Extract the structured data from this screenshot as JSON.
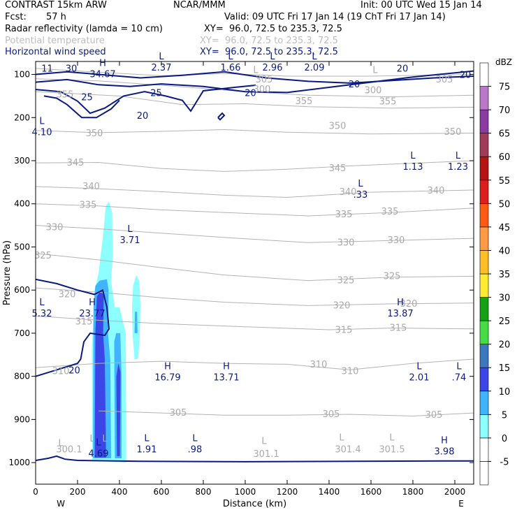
{
  "header": {
    "model": "CONTRAST 15km ARW",
    "org": "NCAR/MMM",
    "init": "Init: 00 UTC Wed 15 Jan 14",
    "fcst_label": "Fcst:",
    "fcst_value": "57 h",
    "valid": "Valid: 09 UTC Fri 17 Jan 14 (19 ChT Fri 17 Jan 14)",
    "fields": [
      {
        "name": "Radar reflectivity (lamda = 10 cm)",
        "xy": "XY=  96.0, 72.5 to 235.3, 72.5",
        "color": "#000000"
      },
      {
        "name": "Potential temperature",
        "xy": "XY=  96.0, 72.5 to 235.3, 72.5",
        "color": "#bdbdbd"
      },
      {
        "name": "Horizontal wind speed",
        "xy": "XY=  96.0, 72.5 to 235.3, 72.5",
        "color": "#0b1a80"
      }
    ]
  },
  "chart_data": {
    "type": "cross-section",
    "xlabel": "Distance (km)",
    "ylabel": "Pressure (hPa)",
    "xlim": [
      0,
      2090
    ],
    "ylim": [
      1050,
      70
    ],
    "x_ticks": [
      0,
      200,
      400,
      600,
      800,
      1000,
      1200,
      1400,
      1600,
      1800,
      2000
    ],
    "y_ticks": [
      100,
      200,
      300,
      400,
      500,
      600,
      700,
      800,
      900,
      1000
    ],
    "x_end_labels": {
      "left": "W",
      "right": "E"
    },
    "colorbar": {
      "unit": "dBZ",
      "levels": [
        -5,
        0,
        5,
        10,
        15,
        20,
        25,
        30,
        35,
        40,
        45,
        50,
        55,
        60,
        65,
        70,
        75
      ],
      "colors": [
        "#ffffff",
        "#ffffff",
        "#8effff",
        "#40b4ff",
        "#3c46e6",
        "#3c78be",
        "#46dc46",
        "#16a016",
        "#ffeb32",
        "#ffbe28",
        "#ff9b46",
        "#ff5a14",
        "#dc1e1e",
        "#b41414",
        "#a03c5a",
        "#8c3ca0",
        "#b978c8",
        "#ffffff"
      ]
    },
    "theta_labels": [
      {
        "v": "305",
        "x": 1090,
        "p": 112
      },
      {
        "v": "305",
        "x": 1950,
        "p": 112
      },
      {
        "v": "300",
        "x": 1080,
        "p": 135
      },
      {
        "v": "300",
        "x": 1610,
        "p": 137
      },
      {
        "v": "355",
        "x": 140,
        "p": 147
      },
      {
        "v": "355",
        "x": 1280,
        "p": 162
      },
      {
        "v": "355",
        "x": 1680,
        "p": 163
      },
      {
        "v": "350",
        "x": 280,
        "p": 237
      },
      {
        "v": "350",
        "x": 1440,
        "p": 220
      },
      {
        "v": "350",
        "x": 1990,
        "p": 234
      },
      {
        "v": "345",
        "x": 190,
        "p": 305
      },
      {
        "v": "345",
        "x": 1440,
        "p": 318
      },
      {
        "v": "340",
        "x": 265,
        "p": 360
      },
      {
        "v": "340",
        "x": 1490,
        "p": 373
      },
      {
        "v": "340",
        "x": 1910,
        "p": 370
      },
      {
        "v": "335",
        "x": 250,
        "p": 403
      },
      {
        "v": "335",
        "x": 1470,
        "p": 425
      },
      {
        "v": "335",
        "x": 1690,
        "p": 418
      },
      {
        "v": "330",
        "x": 90,
        "p": 455
      },
      {
        "v": "330",
        "x": 1480,
        "p": 490
      },
      {
        "v": "330",
        "x": 1720,
        "p": 485
      },
      {
        "v": "325",
        "x": 35,
        "p": 520
      },
      {
        "v": "325",
        "x": 1480,
        "p": 578
      },
      {
        "v": "325",
        "x": 1700,
        "p": 568
      },
      {
        "v": "320",
        "x": 150,
        "p": 610
      },
      {
        "v": "320",
        "x": 1460,
        "p": 636
      },
      {
        "v": "320",
        "x": 1780,
        "p": 632
      },
      {
        "v": "315",
        "x": 230,
        "p": 673
      },
      {
        "v": "315",
        "x": 1470,
        "p": 693
      },
      {
        "v": "315",
        "x": 1730,
        "p": 688
      },
      {
        "v": "310",
        "x": 120,
        "p": 788
      },
      {
        "v": "310",
        "x": 1350,
        "p": 773
      },
      {
        "v": "310",
        "x": 1500,
        "p": 788
      },
      {
        "v": "305",
        "x": 680,
        "p": 885
      },
      {
        "v": "305",
        "x": 1410,
        "p": 888
      },
      {
        "v": "305",
        "x": 1900,
        "p": 890
      },
      {
        "v": "300.1",
        "x": 160,
        "p": 970
      },
      {
        "v": "301.1",
        "x": 1100,
        "p": 980
      },
      {
        "v": "301.4",
        "x": 1490,
        "p": 970
      },
      {
        "v": "301.5",
        "x": 1700,
        "p": 970
      }
    ],
    "theta_marks": [
      {
        "t": "L",
        "x": 270,
        "p": 945
      },
      {
        "t": "L",
        "x": 330,
        "p": 945
      },
      {
        "t": "L",
        "x": 1090,
        "p": 950
      },
      {
        "t": "L",
        "x": 1460,
        "p": 942
      },
      {
        "t": "L",
        "x": 1700,
        "p": 942
      },
      {
        "t": "L",
        "x": 120,
        "p": 955
      },
      {
        "t": "L",
        "x": 1050,
        "p": 90
      },
      {
        "t": "L",
        "x": 1620,
        "p": 90
      }
    ],
    "wind_labels": [
      {
        "v": "11",
        "x": 55,
        "p": 85
      },
      {
        "v": "30",
        "x": 170,
        "p": 85
      },
      {
        "v": "25",
        "x": 245,
        "p": 152
      },
      {
        "v": "25",
        "x": 575,
        "p": 142
      },
      {
        "v": "20",
        "x": 510,
        "p": 195
      },
      {
        "v": "20",
        "x": 1025,
        "p": 142
      },
      {
        "v": "20",
        "x": 1520,
        "p": 122
      },
      {
        "v": "20",
        "x": 1750,
        "p": 85
      },
      {
        "v": "20",
        "x": 2050,
        "p": 100
      },
      {
        "v": "20",
        "x": 185,
        "p": 785
      }
    ],
    "wind_extrema": [
      {
        "t": "H",
        "v": "34.67",
        "x": 320,
        "p": 85
      },
      {
        "t": "L",
        "v": "2.37",
        "x": 600,
        "p": 70
      },
      {
        "t": "L",
        "v": "1.66",
        "x": 930,
        "p": 70
      },
      {
        "t": "L",
        "v": "2.96",
        "x": 1130,
        "p": 70
      },
      {
        "t": "L",
        "v": "2.09",
        "x": 1330,
        "p": 70
      },
      {
        "t": "L",
        "v": "4.10",
        "x": 30,
        "p": 220
      },
      {
        "t": "L",
        "v": "1.13",
        "x": 1800,
        "p": 300
      },
      {
        "t": "L",
        "v": "1.23",
        "x": 2015,
        "p": 300
      },
      {
        "t": "L",
        "v": ".33",
        "x": 1550,
        "p": 365
      },
      {
        "t": "L",
        "v": "3.71",
        "x": 450,
        "p": 470
      },
      {
        "t": "L",
        "v": "5.32",
        "x": 30,
        "p": 640
      },
      {
        "t": "H",
        "v": "23.77",
        "x": 270,
        "p": 640
      },
      {
        "t": "H",
        "v": "13.87",
        "x": 1740,
        "p": 640
      },
      {
        "t": "H",
        "v": "16.79",
        "x": 630,
        "p": 788
      },
      {
        "t": "H",
        "v": "13.71",
        "x": 910,
        "p": 788
      },
      {
        "t": "L",
        "v": "2.01",
        "x": 1830,
        "p": 788
      },
      {
        "t": "L",
        "v": ".74",
        "x": 2020,
        "p": 788
      },
      {
        "t": "L",
        "v": "4.69",
        "x": 300,
        "p": 965
      },
      {
        "t": "L",
        "v": "1.91",
        "x": 530,
        "p": 955
      },
      {
        "t": "L",
        "v": ".98",
        "x": 760,
        "p": 955
      },
      {
        "t": "H",
        "v": "3.98",
        "x": 1950,
        "p": 960
      }
    ]
  }
}
